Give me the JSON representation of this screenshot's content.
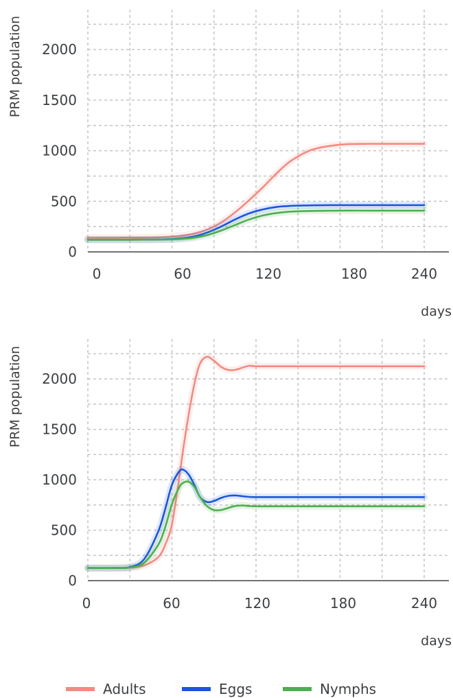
{
  "chart_data": [
    {
      "type": "line",
      "xlabel": "days",
      "ylabel": "PRM population",
      "xlim": [
        0,
        240
      ],
      "ylim": [
        0,
        2300
      ],
      "xticks": [
        0,
        60,
        120,
        180,
        240
      ],
      "yticks": [
        0,
        500,
        1000,
        1500,
        2000
      ],
      "grid": true,
      "x": [
        0,
        20,
        40,
        55,
        65,
        75,
        85,
        95,
        105,
        115,
        125,
        135,
        145,
        160,
        180,
        200,
        220,
        240
      ],
      "series": [
        {
          "name": "Adults",
          "color": "#f28b82",
          "values": [
            140,
            140,
            141,
            146,
            157,
            178,
            220,
            290,
            390,
            510,
            640,
            780,
            900,
            1010,
            1060,
            1068,
            1068,
            1068
          ]
        },
        {
          "name": "Eggs",
          "color": "#1a56db",
          "values": [
            120,
            120,
            121,
            124,
            132,
            150,
            190,
            250,
            320,
            380,
            420,
            445,
            455,
            460,
            462,
            462,
            462,
            462
          ]
        },
        {
          "name": "Nymphs",
          "color": "#4caf50",
          "values": [
            120,
            120,
            121,
            122,
            126,
            138,
            165,
            210,
            265,
            320,
            360,
            385,
            398,
            405,
            408,
            408,
            408,
            408
          ]
        }
      ]
    },
    {
      "type": "line",
      "xlabel": "days",
      "ylabel": "PRM population",
      "xlim": [
        0,
        240
      ],
      "ylim": [
        0,
        2300
      ],
      "xticks": [
        0,
        60,
        120,
        180,
        240
      ],
      "yticks": [
        0,
        500,
        1000,
        1500,
        2000
      ],
      "grid": true,
      "x": [
        0,
        20,
        30,
        40,
        50,
        55,
        60,
        65,
        68,
        72,
        76,
        80,
        85,
        90,
        95,
        100,
        105,
        110,
        115,
        120,
        130,
        150,
        180,
        210,
        240
      ],
      "series": [
        {
          "name": "Adults",
          "color": "#f28b82",
          "values": [
            125,
            125,
            128,
            150,
            230,
            350,
            560,
            1000,
            1300,
            1650,
            1950,
            2150,
            2220,
            2180,
            2120,
            2090,
            2090,
            2110,
            2130,
            2125,
            2125,
            2125,
            2125,
            2125,
            2125
          ]
        },
        {
          "name": "Eggs",
          "color": "#1a56db",
          "values": [
            125,
            125,
            135,
            210,
            480,
            700,
            950,
            1080,
            1100,
            1050,
            950,
            830,
            780,
            790,
            820,
            840,
            845,
            838,
            830,
            828,
            828,
            828,
            828,
            828,
            828
          ]
        },
        {
          "name": "Nymphs",
          "color": "#4caf50",
          "values": [
            125,
            125,
            130,
            175,
            350,
            520,
            760,
            920,
            970,
            980,
            930,
            830,
            740,
            700,
            700,
            720,
            740,
            745,
            740,
            737,
            737,
            737,
            737,
            737,
            737
          ]
        }
      ]
    }
  ],
  "legend": {
    "placement": "bottom",
    "items": [
      {
        "label": "Adults",
        "color": "#f28b82"
      },
      {
        "label": "Eggs",
        "color": "#1a56db"
      },
      {
        "label": "Nymphs",
        "color": "#4caf50"
      }
    ]
  }
}
